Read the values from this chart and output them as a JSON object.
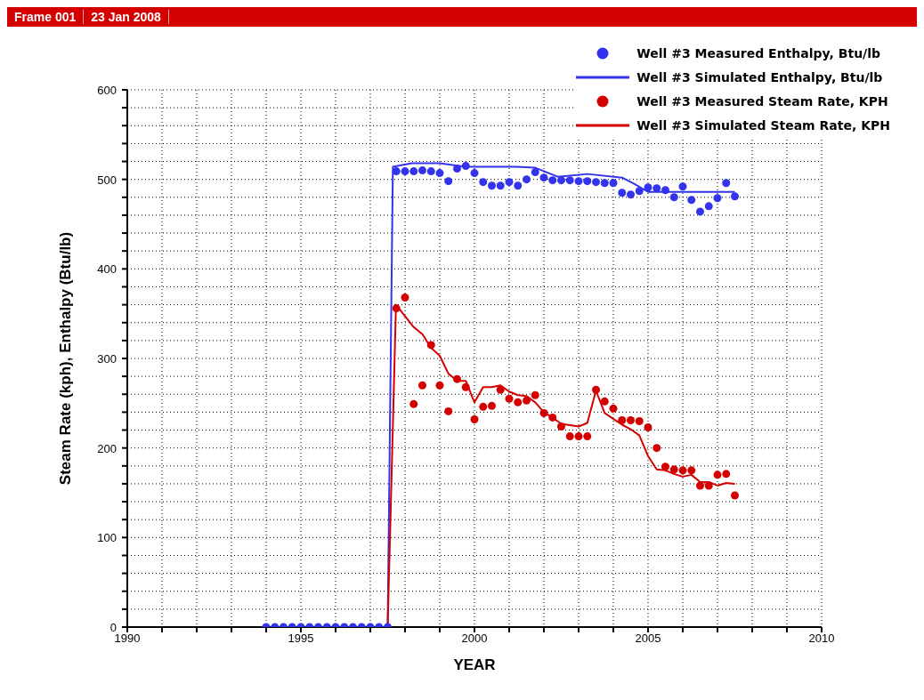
{
  "chart_data": {
    "type": "line",
    "title": "Frame 001",
    "subtitle": "23 Jan 2008",
    "xlabel": "YEAR",
    "ylabel": "Steam Rate (kph),  Enthalpy (Btu/lb)",
    "xlim": [
      1990,
      2010
    ],
    "ylim": [
      0,
      600
    ],
    "xticks": [
      1990,
      {
        "value": 1991,
        "label": null
      },
      {
        "value": 1992,
        "label": null
      },
      {
        "value": 1993,
        "label": null
      },
      {
        "value": 1994,
        "label": null
      },
      1995,
      {
        "value": 1996,
        "label": null
      },
      {
        "value": 1997,
        "label": null
      },
      {
        "value": 1998,
        "label": null
      },
      {
        "value": 1999,
        "label": null
      },
      2000,
      {
        "value": 2001,
        "label": null
      },
      {
        "value": 2002,
        "label": null
      },
      {
        "value": 2003,
        "label": null
      },
      {
        "value": 2004,
        "label": null
      },
      2005,
      {
        "value": 2006,
        "label": null
      },
      {
        "value": 2007,
        "label": null
      },
      {
        "value": 2008,
        "label": null
      },
      {
        "value": 2009,
        "label": null
      },
      2010
    ],
    "yticks": [
      0,
      {
        "value": 20,
        "label": null
      },
      {
        "value": 40,
        "label": null
      },
      {
        "value": 60,
        "label": null
      },
      {
        "value": 80,
        "label": null
      },
      100,
      {
        "value": 120,
        "label": null
      },
      {
        "value": 140,
        "label": null
      },
      {
        "value": 160,
        "label": null
      },
      {
        "value": 180,
        "label": null
      },
      200,
      {
        "value": 220,
        "label": null
      },
      {
        "value": 240,
        "label": null
      },
      {
        "value": 260,
        "label": null
      },
      {
        "value": 280,
        "label": null
      },
      300,
      {
        "value": 320,
        "label": null
      },
      {
        "value": 340,
        "label": null
      },
      {
        "value": 360,
        "label": null
      },
      {
        "value": 380,
        "label": null
      },
      400,
      {
        "value": 420,
        "label": null
      },
      {
        "value": 440,
        "label": null
      },
      {
        "value": 460,
        "label": null
      },
      {
        "value": 480,
        "label": null
      },
      500,
      {
        "value": 520,
        "label": null
      },
      {
        "value": 540,
        "label": null
      },
      {
        "value": 560,
        "label": null
      },
      {
        "value": 580,
        "label": null
      },
      600
    ],
    "grid": true,
    "legend": "top right",
    "series": [
      {
        "name": "Well #3 Measured Enthalpy, Btu/lb",
        "type": "scatter",
        "marker": "circle",
        "color": "#3333ee",
        "x": [
          1994,
          1994.25,
          1994.5,
          1994.75,
          1995,
          1995.25,
          1995.5,
          1995.75,
          1996,
          1996.25,
          1996.5,
          1996.75,
          1997,
          1997.25,
          1997.5,
          1997.75,
          1998,
          1998.25,
          1998.5,
          1998.75,
          1999,
          1999.25,
          1999.5,
          1999.75,
          2000,
          2000.25,
          2000.5,
          2000.75,
          2001,
          2001.25,
          2001.5,
          2001.75,
          2002,
          2002.25,
          2002.5,
          2002.75,
          2003,
          2003.25,
          2003.5,
          2003.75,
          2004,
          2004.25,
          2004.5,
          2004.75,
          2005,
          2005.25,
          2005.5,
          2005.75,
          2006,
          2006.25,
          2006.5,
          2006.75,
          2007,
          2007.25,
          2007.5
        ],
        "values": [
          0,
          0,
          0,
          0,
          0,
          0,
          0,
          0,
          0,
          0,
          0,
          0,
          0,
          0,
          0,
          509,
          509,
          509,
          510,
          509,
          507,
          498,
          512,
          515,
          507,
          497,
          493,
          493,
          497,
          493,
          500,
          508,
          502,
          499,
          499,
          499,
          498,
          498,
          497,
          496,
          496,
          485,
          483,
          487,
          491,
          490,
          488,
          480,
          492,
          477,
          464,
          470,
          479,
          496,
          481
        ]
      },
      {
        "name": "Well #3 Simulated Enthalpy, Btu/lb",
        "marker": "none",
        "line_style": "solid",
        "color": "#3333ee",
        "x": [
          1994,
          1997.5,
          1997.65,
          1998.2,
          1999,
          1999.75,
          2001.2,
          2001.75,
          2002.4,
          2003.25,
          2004.25,
          2004.6,
          2005,
          2006.5,
          2007.5
        ],
        "values": [
          0,
          0,
          514,
          518,
          518,
          514,
          514,
          513,
          503,
          506,
          502,
          495,
          486,
          486,
          486
        ]
      },
      {
        "name": "Well #3 Measured Steam Rate, KPH",
        "type": "scatter",
        "marker": "circle",
        "color": "#d40000",
        "x": [
          1997.75,
          1998,
          1998.25,
          1998.5,
          1998.75,
          1999,
          1999.25,
          1999.5,
          1999.75,
          2000,
          2000.25,
          2000.5,
          2000.75,
          2001,
          2001.25,
          2001.5,
          2001.75,
          2002,
          2002.25,
          2002.5,
          2002.75,
          2003,
          2003.25,
          2003.5,
          2003.75,
          2004,
          2004.25,
          2004.5,
          2004.75,
          2005,
          2005.25,
          2005.5,
          2005.75,
          2006,
          2006.25,
          2006.5,
          2006.75,
          2007,
          2007.25,
          2007.5
        ],
        "values": [
          356,
          368,
          249,
          270,
          315,
          270,
          241,
          277,
          268,
          232,
          246,
          247,
          265,
          255,
          251,
          253,
          259,
          239,
          234,
          224,
          213,
          213,
          213,
          265,
          252,
          244,
          231,
          231,
          230,
          223,
          200,
          179,
          176,
          175,
          175,
          158,
          158,
          170,
          171,
          147
        ]
      },
      {
        "name": "Well #3 Simulated Steam Rate, KPH",
        "marker": "none",
        "line_style": "solid",
        "color": "#d40000",
        "x": [
          1994,
          1997.5,
          1997.74,
          1998.25,
          1998.5,
          1998.75,
          1999,
          1999.25,
          1999.5,
          1999.75,
          2000,
          2000.25,
          2000.5,
          2000.75,
          2001,
          2001.25,
          2001.5,
          2001.75,
          2002,
          2002.25,
          2002.5,
          2003,
          2003.25,
          2003.5,
          2003.75,
          2004.25,
          2004.5,
          2004.75,
          2005,
          2005.25,
          2005.5,
          2005.75,
          2006,
          2006.25,
          2006.5,
          2006.75,
          2007,
          2007.25,
          2007.5
        ],
        "values": [
          0,
          0,
          360,
          335,
          327,
          312,
          303,
          283,
          275,
          275,
          251,
          268,
          268,
          270,
          263,
          259,
          258,
          251,
          240,
          234,
          227,
          224,
          228,
          264,
          239,
          226,
          221,
          214,
          191,
          176,
          175,
          171,
          168,
          170,
          162,
          162,
          158,
          161,
          160
        ]
      }
    ]
  }
}
